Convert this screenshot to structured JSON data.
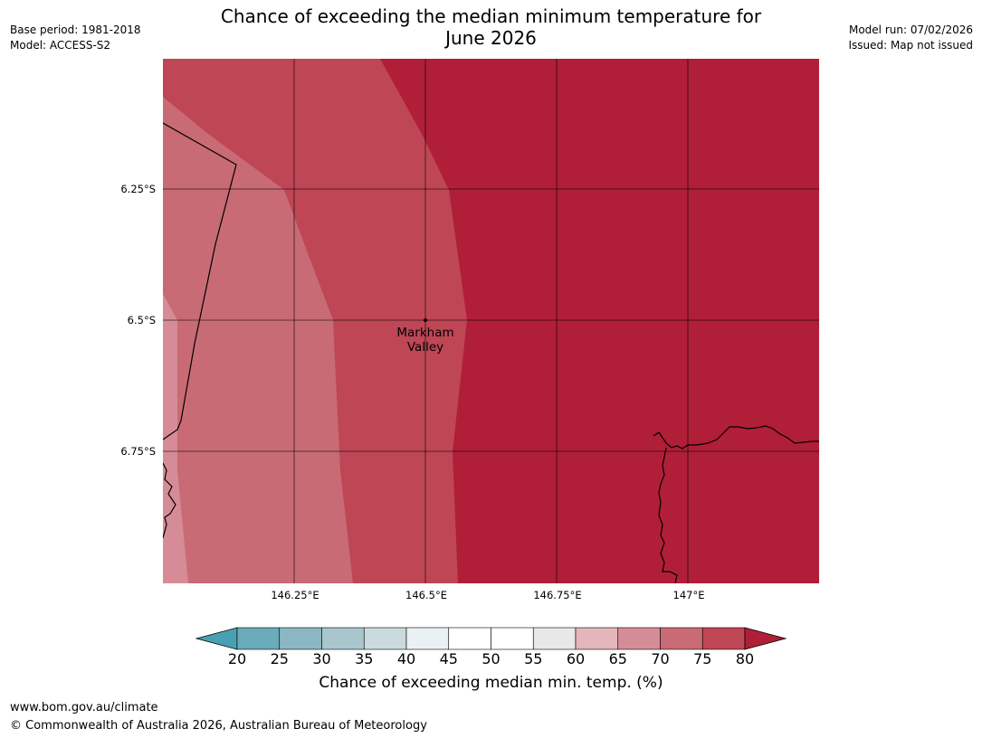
{
  "header": {
    "title_line1": "Chance of exceeding the median minimum temperature for",
    "title_line2": "June 2026",
    "base_period": "Base period: 1981-2018",
    "model": "Model: ACCESS-S2",
    "model_run": "Model run: 07/02/2026",
    "issued": "Issued: Map not issued"
  },
  "map": {
    "lat_labels": [
      "6.25°S",
      "6.5°S",
      "6.75°S"
    ],
    "lon_labels": [
      "146.25°E",
      "146.5°E",
      "146.75°E",
      "147°E"
    ],
    "place": {
      "name_line1": "Markham",
      "name_line2": "Valley"
    },
    "colors": {
      "p60_65": "#e3b6bb",
      "p65_70": "#d68c96",
      "p70_75": "#c86b75",
      "p75_80": "#bf4655",
      "p80_plus": "#b01e38",
      "border": "#000000",
      "grid": "#000000"
    }
  },
  "colorbar": {
    "ticks": [
      "20",
      "25",
      "30",
      "35",
      "40",
      "45",
      "50",
      "55",
      "60",
      "65",
      "70",
      "75",
      "80"
    ],
    "segment_colors": [
      "#6aabba",
      "#8ab7c3",
      "#a9c6cc",
      "#cadadd",
      "#eaf1f3",
      "#ffffff",
      "#ffffff",
      "#e8e8e8",
      "#e3b6bb",
      "#d68c96",
      "#c86b75",
      "#bf4655"
    ],
    "low_extend_color": "#4aa0b3",
    "high_extend_color": "#b01e38",
    "label": "Chance of exceeding median min. temp. (%)"
  },
  "footer": {
    "url": "www.bom.gov.au/climate",
    "copyright": "© Commonwealth of Australia 2026, Australian Bureau of Meteorology"
  }
}
